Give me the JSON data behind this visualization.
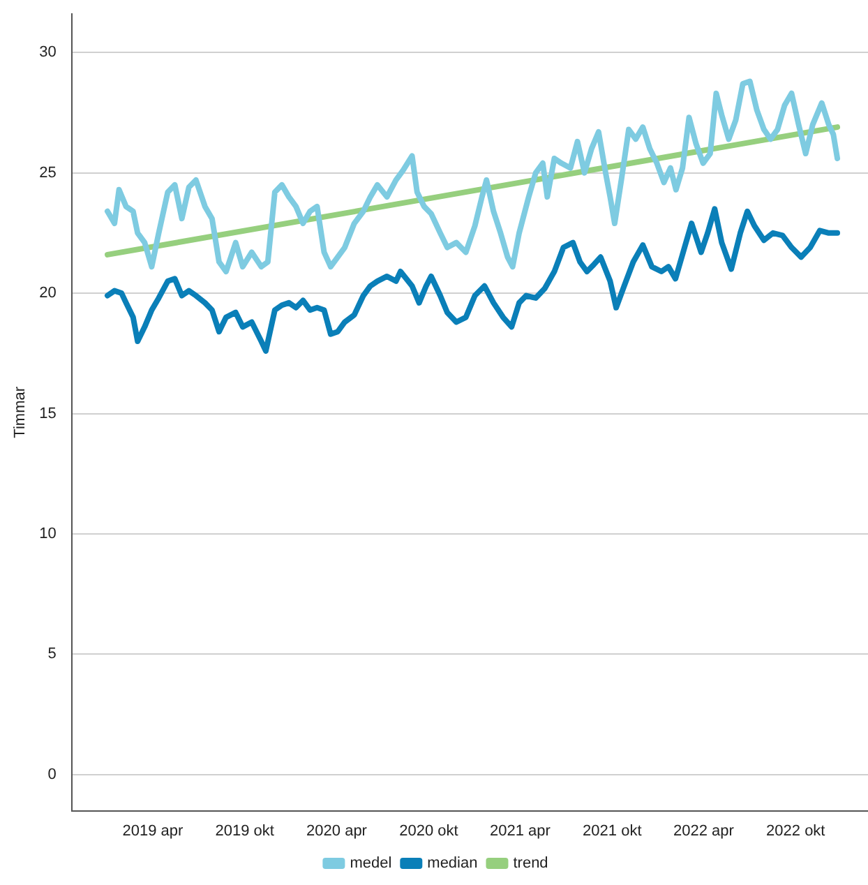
{
  "chart_data": {
    "type": "line",
    "ylabel": "Timmar",
    "ylim": [
      -1.5,
      31.6
    ],
    "yticks": [
      0,
      5,
      10,
      15,
      20,
      25,
      30
    ],
    "xlim": [
      "2018-10-22",
      "2023-02-22"
    ],
    "xticks": [
      {
        "value": "2019-04-01",
        "label": "2019 apr"
      },
      {
        "value": "2019-10-01",
        "label": "2019 okt"
      },
      {
        "value": "2020-04-01",
        "label": "2020 apr"
      },
      {
        "value": "2020-10-01",
        "label": "2020 okt"
      },
      {
        "value": "2021-04-01",
        "label": "2021 apr"
      },
      {
        "value": "2021-10-01",
        "label": "2021 okt"
      },
      {
        "value": "2022-04-01",
        "label": "2022 apr"
      },
      {
        "value": "2022-10-01",
        "label": "2022 okt"
      }
    ],
    "grid": "y",
    "legend": "bottom",
    "marker": "none",
    "line_style": "solid",
    "series": [
      {
        "name": "medel",
        "color": "#7ecbe1",
        "x": [
          "2019-01-01",
          "2019-01-15",
          "2019-01-24",
          "2019-02-07",
          "2019-02-21",
          "2019-03-02",
          "2019-03-16",
          "2019-03-30",
          "2019-04-13",
          "2019-05-01",
          "2019-05-15",
          "2019-05-29",
          "2019-06-12",
          "2019-06-26",
          "2019-07-14",
          "2019-07-28",
          "2019-08-11",
          "2019-08-25",
          "2019-09-13",
          "2019-09-27",
          "2019-10-15",
          "2019-11-03",
          "2019-11-16",
          "2019-11-30",
          "2019-12-14",
          "2019-12-28",
          "2020-01-11",
          "2020-01-25",
          "2020-02-08",
          "2020-02-22",
          "2020-03-07",
          "2020-03-20",
          "2020-04-03",
          "2020-04-17",
          "2020-05-06",
          "2020-05-24",
          "2020-06-07",
          "2020-06-21",
          "2020-07-10",
          "2020-07-28",
          "2020-08-11",
          "2020-08-29",
          "2020-09-08",
          "2020-09-22",
          "2020-10-06",
          "2020-10-24",
          "2020-11-07",
          "2020-11-25",
          "2020-12-14",
          "2021-01-01",
          "2021-01-15",
          "2021-01-24",
          "2021-02-07",
          "2021-02-21",
          "2021-03-07",
          "2021-03-17",
          "2021-03-30",
          "2021-04-18",
          "2021-05-02",
          "2021-05-16",
          "2021-05-25",
          "2021-06-08",
          "2021-06-22",
          "2021-07-10",
          "2021-07-24",
          "2021-08-07",
          "2021-08-21",
          "2021-09-04",
          "2021-09-18",
          "2021-09-27",
          "2021-10-06",
          "2021-10-20",
          "2021-11-03",
          "2021-11-17",
          "2021-12-01",
          "2021-12-15",
          "2021-12-29",
          "2022-01-12",
          "2022-01-25",
          "2022-02-05",
          "2022-02-18",
          "2022-03-03",
          "2022-03-17",
          "2022-03-31",
          "2022-04-14",
          "2022-04-26",
          "2022-05-07",
          "2022-05-21",
          "2022-06-04",
          "2022-06-18",
          "2022-07-02",
          "2022-07-16",
          "2022-07-30",
          "2022-08-12",
          "2022-08-26",
          "2022-09-09",
          "2022-09-23",
          "2022-10-07",
          "2022-10-21",
          "2022-11-04",
          "2022-11-22",
          "2022-12-06",
          "2022-12-15",
          "2022-12-23"
        ],
        "values": [
          23.4,
          22.9,
          24.3,
          23.6,
          23.4,
          22.5,
          22.1,
          21.1,
          22.5,
          24.2,
          24.5,
          23.1,
          24.4,
          24.7,
          23.6,
          23.1,
          21.3,
          20.9,
          22.1,
          21.1,
          21.7,
          21.1,
          21.3,
          24.2,
          24.5,
          24.0,
          23.6,
          22.9,
          23.4,
          23.6,
          21.7,
          21.1,
          21.5,
          21.9,
          22.9,
          23.4,
          24.0,
          24.5,
          24.0,
          24.7,
          25.1,
          25.7,
          24.2,
          23.6,
          23.3,
          22.5,
          21.9,
          22.1,
          21.7,
          22.8,
          24.0,
          24.7,
          23.4,
          22.5,
          21.5,
          21.1,
          22.5,
          24.0,
          25.0,
          25.4,
          24.0,
          25.6,
          25.4,
          25.2,
          26.3,
          25.0,
          26.0,
          26.7,
          25.0,
          24.0,
          22.9,
          24.8,
          26.8,
          26.4,
          26.9,
          26.0,
          25.4,
          24.6,
          25.2,
          24.3,
          25.2,
          27.3,
          26.2,
          25.4,
          25.8,
          28.3,
          27.4,
          26.4,
          27.2,
          28.7,
          28.8,
          27.6,
          26.8,
          26.4,
          26.8,
          27.8,
          28.3,
          27.0,
          25.8,
          27.0,
          27.9,
          27.0,
          26.6,
          25.6
        ]
      },
      {
        "name": "median",
        "color": "#0a7fb8",
        "x": [
          "2019-01-01",
          "2019-01-15",
          "2019-01-29",
          "2019-02-07",
          "2019-02-21",
          "2019-03-02",
          "2019-03-16",
          "2019-03-30",
          "2019-04-13",
          "2019-05-01",
          "2019-05-15",
          "2019-05-29",
          "2019-06-12",
          "2019-06-26",
          "2019-07-14",
          "2019-07-28",
          "2019-08-11",
          "2019-08-25",
          "2019-09-13",
          "2019-09-27",
          "2019-10-15",
          "2019-11-03",
          "2019-11-12",
          "2019-11-30",
          "2019-12-14",
          "2019-12-28",
          "2020-01-11",
          "2020-01-25",
          "2020-02-08",
          "2020-02-22",
          "2020-03-07",
          "2020-03-20",
          "2020-04-03",
          "2020-04-17",
          "2020-05-06",
          "2020-05-24",
          "2020-06-07",
          "2020-06-21",
          "2020-07-10",
          "2020-07-28",
          "2020-08-06",
          "2020-08-29",
          "2020-09-12",
          "2020-09-26",
          "2020-10-06",
          "2020-10-24",
          "2020-11-07",
          "2020-11-25",
          "2020-12-14",
          "2021-01-01",
          "2021-01-20",
          "2021-02-07",
          "2021-02-26",
          "2021-03-15",
          "2021-03-30",
          "2021-04-13",
          "2021-05-02",
          "2021-05-20",
          "2021-06-08",
          "2021-06-26",
          "2021-07-15",
          "2021-07-29",
          "2021-08-12",
          "2021-08-26",
          "2021-09-08",
          "2021-09-27",
          "2021-10-09",
          "2021-10-25",
          "2021-11-12",
          "2021-12-01",
          "2021-12-19",
          "2022-01-07",
          "2022-01-21",
          "2022-02-04",
          "2022-02-22",
          "2022-03-08",
          "2022-03-27",
          "2022-04-09",
          "2022-04-23",
          "2022-05-07",
          "2022-05-26",
          "2022-06-13",
          "2022-06-27",
          "2022-07-11",
          "2022-07-30",
          "2022-08-17",
          "2022-09-05",
          "2022-09-23",
          "2022-10-12",
          "2022-10-30",
          "2022-11-18",
          "2022-12-06",
          "2022-12-23"
        ],
        "values": [
          19.9,
          20.1,
          20.0,
          19.6,
          19.0,
          18.0,
          18.6,
          19.3,
          19.8,
          20.5,
          20.6,
          19.9,
          20.1,
          19.9,
          19.6,
          19.3,
          18.4,
          19.0,
          19.2,
          18.6,
          18.8,
          18.0,
          17.6,
          19.3,
          19.5,
          19.6,
          19.4,
          19.7,
          19.3,
          19.4,
          19.3,
          18.3,
          18.4,
          18.8,
          19.1,
          19.9,
          20.3,
          20.5,
          20.7,
          20.5,
          20.9,
          20.3,
          19.6,
          20.3,
          20.7,
          19.9,
          19.2,
          18.8,
          19.0,
          19.9,
          20.3,
          19.6,
          19.0,
          18.6,
          19.6,
          19.9,
          19.8,
          20.2,
          20.9,
          21.9,
          22.1,
          21.3,
          20.9,
          21.2,
          21.5,
          20.5,
          19.4,
          20.3,
          21.3,
          22.0,
          21.1,
          20.9,
          21.1,
          20.6,
          21.9,
          22.9,
          21.7,
          22.5,
          23.5,
          22.1,
          21.0,
          22.5,
          23.4,
          22.8,
          22.2,
          22.5,
          22.4,
          21.9,
          21.5,
          21.9,
          22.6,
          22.5,
          22.5
        ]
      },
      {
        "name": "trend",
        "color": "#96cf7e",
        "x": [
          "2019-01-01",
          "2022-12-23"
        ],
        "values": [
          21.6,
          26.9
        ]
      }
    ]
  }
}
